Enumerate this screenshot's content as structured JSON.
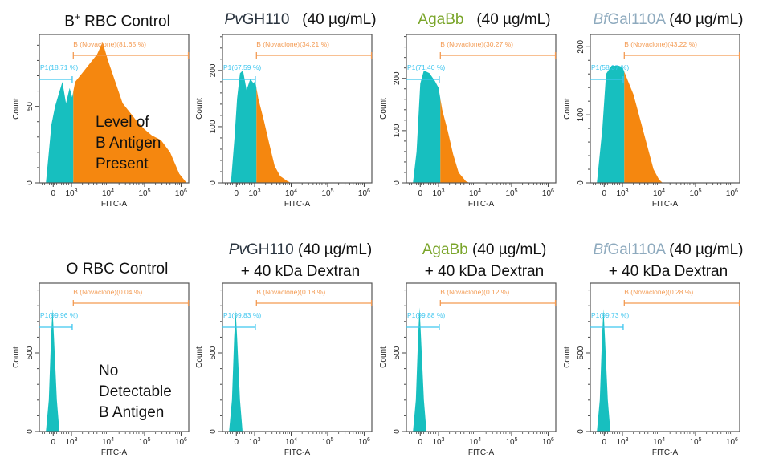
{
  "colors": {
    "negative": "#17bfbf",
    "positive": "#f5870f",
    "gate_b": "#f39a52",
    "gate_p1": "#3fc6ef",
    "agabb": "#7aa52a",
    "bfgal": "#8eaabe",
    "pvgh": "#2b3540"
  },
  "chart_data": [
    {
      "type": "area",
      "title_line1": [
        {
          "text": "B",
          "style": "normal"
        },
        {
          "text": "+",
          "style": "sup"
        },
        {
          "text": " RBC Control",
          "style": "normal"
        }
      ],
      "title_line2": "",
      "xlabel": "FITC-A",
      "ylabel": "Count",
      "xscale": "biexponential",
      "xlim": [
        2.12,
        6.21
      ],
      "xticks": [
        {
          "x": 2.5,
          "label": "0"
        },
        {
          "x": 3,
          "label": "10",
          "exp": "3"
        },
        {
          "x": 4,
          "label": "10",
          "exp": "4"
        },
        {
          "x": 5,
          "label": "10",
          "exp": "5"
        },
        {
          "x": 6,
          "label": "10",
          "exp": "6"
        }
      ],
      "ylim": [
        0,
        97
      ],
      "yticks": [
        0,
        50
      ],
      "yminor": 10,
      "gates": {
        "p1": {
          "label": "P1(18.71 %)",
          "range": [
            2.12,
            3.02
          ]
        },
        "b": {
          "label": "B (Novaclone)(81.65 %)",
          "range": [
            3.05,
            6.2
          ]
        }
      },
      "series": [
        [
          2.3,
          0
        ],
        [
          2.38,
          20
        ],
        [
          2.45,
          38
        ],
        [
          2.55,
          50
        ],
        [
          2.65,
          58
        ],
        [
          2.75,
          66
        ],
        [
          2.85,
          52
        ],
        [
          2.95,
          62
        ],
        [
          3.02,
          56
        ],
        [
          3.1,
          66
        ],
        [
          3.3,
          72
        ],
        [
          3.5,
          78
        ],
        [
          3.7,
          84
        ],
        [
          3.85,
          92
        ],
        [
          4.0,
          80
        ],
        [
          4.2,
          66
        ],
        [
          4.4,
          52
        ],
        [
          4.6,
          46
        ],
        [
          4.8,
          40
        ],
        [
          5.0,
          35
        ],
        [
          5.2,
          31
        ],
        [
          5.45,
          28
        ],
        [
          5.7,
          20
        ],
        [
          5.95,
          6
        ],
        [
          6.15,
          0
        ]
      ],
      "annotation": [
        "Level of",
        "B Antigen",
        "Present"
      ]
    },
    {
      "type": "area",
      "title_line1": [
        {
          "text": "Pv",
          "style": "italic",
          "color": "pvgh"
        },
        {
          "text": "GH110",
          "style": "normal",
          "color": "pvgh"
        },
        {
          "text": "   (40 µg/mL)",
          "style": "normal"
        }
      ],
      "title_line2": "",
      "xlabel": "FITC-A",
      "ylabel": "Count",
      "xscale": "biexponential",
      "xlim": [
        2.12,
        6.21
      ],
      "xticks": [
        {
          "x": 2.5,
          "label": "0"
        },
        {
          "x": 3,
          "label": "10",
          "exp": "3"
        },
        {
          "x": 4,
          "label": "10",
          "exp": "4"
        },
        {
          "x": 5,
          "label": "10",
          "exp": "5"
        },
        {
          "x": 6,
          "label": "10",
          "exp": "6"
        }
      ],
      "ylim": [
        0,
        264
      ],
      "yticks": [
        0,
        100,
        200
      ],
      "yminor": 20,
      "gates": {
        "p1": {
          "label": "P1(67.59 %)",
          "range": [
            2.12,
            3.02
          ]
        },
        "b": {
          "label": "B (Novaclone)(34.21 %)",
          "range": [
            3.05,
            6.2
          ]
        }
      },
      "series": [
        [
          2.35,
          0
        ],
        [
          2.45,
          80
        ],
        [
          2.52,
          150
        ],
        [
          2.6,
          195
        ],
        [
          2.68,
          200
        ],
        [
          2.78,
          165
        ],
        [
          2.88,
          185
        ],
        [
          2.96,
          178
        ],
        [
          3.02,
          180
        ],
        [
          3.1,
          150
        ],
        [
          3.25,
          112
        ],
        [
          3.4,
          70
        ],
        [
          3.55,
          30
        ],
        [
          3.7,
          12
        ],
        [
          3.9,
          3
        ],
        [
          4.0,
          0
        ]
      ],
      "annotation": []
    },
    {
      "type": "area",
      "title_line1": [
        {
          "text": "AgaBb",
          "style": "normal",
          "color": "agabb"
        },
        {
          "text": "   (40 µg/mL)",
          "style": "normal"
        }
      ],
      "title_line2": "",
      "xlabel": "FITC-A",
      "ylabel": "Count",
      "xscale": "biexponential",
      "xlim": [
        2.12,
        6.21
      ],
      "xticks": [
        {
          "x": 2.5,
          "label": "0"
        },
        {
          "x": 3,
          "label": "10",
          "exp": "3"
        },
        {
          "x": 4,
          "label": "10",
          "exp": "4"
        },
        {
          "x": 5,
          "label": "10",
          "exp": "5"
        },
        {
          "x": 6,
          "label": "10",
          "exp": "6"
        }
      ],
      "ylim": [
        0,
        284
      ],
      "yticks": [
        0,
        100,
        200
      ],
      "yminor": 20,
      "gates": {
        "p1": {
          "label": "P1(71.40 %)",
          "range": [
            2.12,
            3.02
          ]
        },
        "b": {
          "label": "B (Novaclone)(30.27 %)",
          "range": [
            3.05,
            6.2
          ]
        }
      },
      "series": [
        [
          2.3,
          0
        ],
        [
          2.4,
          60
        ],
        [
          2.5,
          190
        ],
        [
          2.6,
          215
        ],
        [
          2.75,
          210
        ],
        [
          2.9,
          195
        ],
        [
          3.0,
          182
        ],
        [
          3.1,
          140
        ],
        [
          3.25,
          100
        ],
        [
          3.4,
          55
        ],
        [
          3.55,
          20
        ],
        [
          3.75,
          3
        ],
        [
          3.85,
          0
        ]
      ],
      "annotation": []
    },
    {
      "type": "area",
      "title_line1": [
        {
          "text": "Bf",
          "style": "italic",
          "color": "bfgal"
        },
        {
          "text": "Gal110A",
          "style": "normal",
          "color": "bfgal"
        },
        {
          "text": " (40 µg/mL)",
          "style": "normal"
        }
      ],
      "title_line2": "",
      "xlabel": "FITC-A",
      "ylabel": "Count",
      "xscale": "biexponential",
      "xlim": [
        2.12,
        6.21
      ],
      "xticks": [
        {
          "x": 2.5,
          "label": "0"
        },
        {
          "x": 3,
          "label": "10",
          "exp": "3"
        },
        {
          "x": 4,
          "label": "10",
          "exp": "4"
        },
        {
          "x": 5,
          "label": "10",
          "exp": "5"
        },
        {
          "x": 6,
          "label": "10",
          "exp": "6"
        }
      ],
      "ylim": [
        0,
        218
      ],
      "yticks": [
        0,
        100,
        200
      ],
      "yminor": 20,
      "gates": {
        "p1": {
          "label": "P1(58.37 %)",
          "range": [
            2.12,
            3.02
          ]
        },
        "b": {
          "label": "B (Novaclone)(43.22 %)",
          "range": [
            3.05,
            6.2
          ]
        }
      },
      "series": [
        [
          2.3,
          0
        ],
        [
          2.45,
          80
        ],
        [
          2.55,
          160
        ],
        [
          2.7,
          172
        ],
        [
          2.9,
          172
        ],
        [
          3.0,
          170
        ],
        [
          3.15,
          150
        ],
        [
          3.3,
          130
        ],
        [
          3.5,
          90
        ],
        [
          3.7,
          50
        ],
        [
          3.85,
          20
        ],
        [
          4.0,
          5
        ],
        [
          4.1,
          0
        ]
      ],
      "annotation": []
    },
    {
      "type": "area",
      "title_line1": [
        {
          "text": "O RBC Control",
          "style": "normal"
        }
      ],
      "title_line2": "",
      "xlabel": "FITC-A",
      "ylabel": "Count",
      "xscale": "biexponential",
      "xlim": [
        2.12,
        6.21
      ],
      "xticks": [
        {
          "x": 2.5,
          "label": "0"
        },
        {
          "x": 3,
          "label": "10",
          "exp": "3"
        },
        {
          "x": 4,
          "label": "10",
          "exp": "4"
        },
        {
          "x": 5,
          "label": "10",
          "exp": "5"
        },
        {
          "x": 6,
          "label": "10",
          "exp": "6"
        }
      ],
      "ylim": [
        0,
        944
      ],
      "yticks": [
        0,
        500
      ],
      "yminor": 100,
      "gates": {
        "p1": {
          "label": "P1(99.96 %)",
          "range": [
            2.12,
            3.02
          ]
        },
        "b": {
          "label": "B (Novaclone)(0.04 %)",
          "range": [
            3.05,
            6.2
          ]
        }
      },
      "series": [
        [
          2.3,
          0
        ],
        [
          2.38,
          200
        ],
        [
          2.44,
          600
        ],
        [
          2.48,
          780
        ],
        [
          2.52,
          600
        ],
        [
          2.6,
          200
        ],
        [
          2.67,
          0
        ]
      ],
      "annotation": [
        "No",
        "Detectable",
        "B Antigen"
      ]
    },
    {
      "type": "area",
      "title_line1": [
        {
          "text": "Pv",
          "style": "italic",
          "color": "pvgh"
        },
        {
          "text": "GH110",
          "style": "normal",
          "color": "pvgh"
        },
        {
          "text": " (40 µg/mL)",
          "style": "normal"
        }
      ],
      "title_line2": "+ 40 kDa Dextran",
      "xlabel": "FITC-A",
      "ylabel": "Count",
      "xscale": "biexponential",
      "xlim": [
        2.12,
        6.21
      ],
      "xticks": [
        {
          "x": 2.5,
          "label": "0"
        },
        {
          "x": 3,
          "label": "10",
          "exp": "3"
        },
        {
          "x": 4,
          "label": "10",
          "exp": "4"
        },
        {
          "x": 5,
          "label": "10",
          "exp": "5"
        },
        {
          "x": 6,
          "label": "10",
          "exp": "6"
        }
      ],
      "ylim": [
        0,
        944
      ],
      "yticks": [
        0,
        500
      ],
      "yminor": 100,
      "gates": {
        "p1": {
          "label": "P1(99.83 %)",
          "range": [
            2.12,
            3.02
          ]
        },
        "b": {
          "label": "B (Novaclone)(0.18 %)",
          "range": [
            3.05,
            6.2
          ]
        }
      },
      "series": [
        [
          2.3,
          0
        ],
        [
          2.38,
          200
        ],
        [
          2.44,
          600
        ],
        [
          2.48,
          770
        ],
        [
          2.52,
          600
        ],
        [
          2.6,
          200
        ],
        [
          2.67,
          0
        ]
      ],
      "annotation": []
    },
    {
      "type": "area",
      "title_line1": [
        {
          "text": "AgaBb",
          "style": "normal",
          "color": "agabb"
        },
        {
          "text": " (40 µg/mL)",
          "style": "normal"
        }
      ],
      "title_line2": "+ 40 kDa Dextran",
      "xlabel": "FITC-A",
      "ylabel": "Count",
      "xscale": "biexponential",
      "xlim": [
        2.12,
        6.21
      ],
      "xticks": [
        {
          "x": 2.5,
          "label": "0"
        },
        {
          "x": 3,
          "label": "10",
          "exp": "3"
        },
        {
          "x": 4,
          "label": "10",
          "exp": "4"
        },
        {
          "x": 5,
          "label": "10",
          "exp": "5"
        },
        {
          "x": 6,
          "label": "10",
          "exp": "6"
        }
      ],
      "ylim": [
        0,
        944
      ],
      "yticks": [
        0,
        500
      ],
      "yminor": 100,
      "gates": {
        "p1": {
          "label": "P1(99.88 %)",
          "range": [
            2.12,
            3.02
          ]
        },
        "b": {
          "label": "B (Novaclone)(0.12 %)",
          "range": [
            3.05,
            6.2
          ]
        }
      },
      "series": [
        [
          2.3,
          0
        ],
        [
          2.38,
          200
        ],
        [
          2.44,
          600
        ],
        [
          2.48,
          790
        ],
        [
          2.52,
          600
        ],
        [
          2.6,
          200
        ],
        [
          2.67,
          0
        ]
      ],
      "annotation": []
    },
    {
      "type": "area",
      "title_line1": [
        {
          "text": "Bf",
          "style": "italic",
          "color": "bfgal"
        },
        {
          "text": "Gal110A",
          "style": "normal",
          "color": "bfgal"
        },
        {
          "text": " (40 µg/mL)",
          "style": "normal"
        }
      ],
      "title_line2": "+ 40 kDa Dextran",
      "xlabel": "FITC-A",
      "ylabel": "Count",
      "xscale": "biexponential",
      "xlim": [
        2.12,
        6.21
      ],
      "xticks": [
        {
          "x": 2.5,
          "label": "0"
        },
        {
          "x": 3,
          "label": "10",
          "exp": "3"
        },
        {
          "x": 4,
          "label": "10",
          "exp": "4"
        },
        {
          "x": 5,
          "label": "10",
          "exp": "5"
        },
        {
          "x": 6,
          "label": "10",
          "exp": "6"
        }
      ],
      "ylim": [
        0,
        944
      ],
      "yticks": [
        0,
        500
      ],
      "yminor": 100,
      "gates": {
        "p1": {
          "label": "P1(99.73 %)",
          "range": [
            2.12,
            3.02
          ]
        },
        "b": {
          "label": "B (Novaclone)(0.28 %)",
          "range": [
            3.05,
            6.2
          ]
        }
      },
      "series": [
        [
          2.3,
          0
        ],
        [
          2.38,
          200
        ],
        [
          2.44,
          600
        ],
        [
          2.48,
          780
        ],
        [
          2.52,
          600
        ],
        [
          2.6,
          200
        ],
        [
          2.67,
          0
        ]
      ],
      "annotation": []
    }
  ]
}
